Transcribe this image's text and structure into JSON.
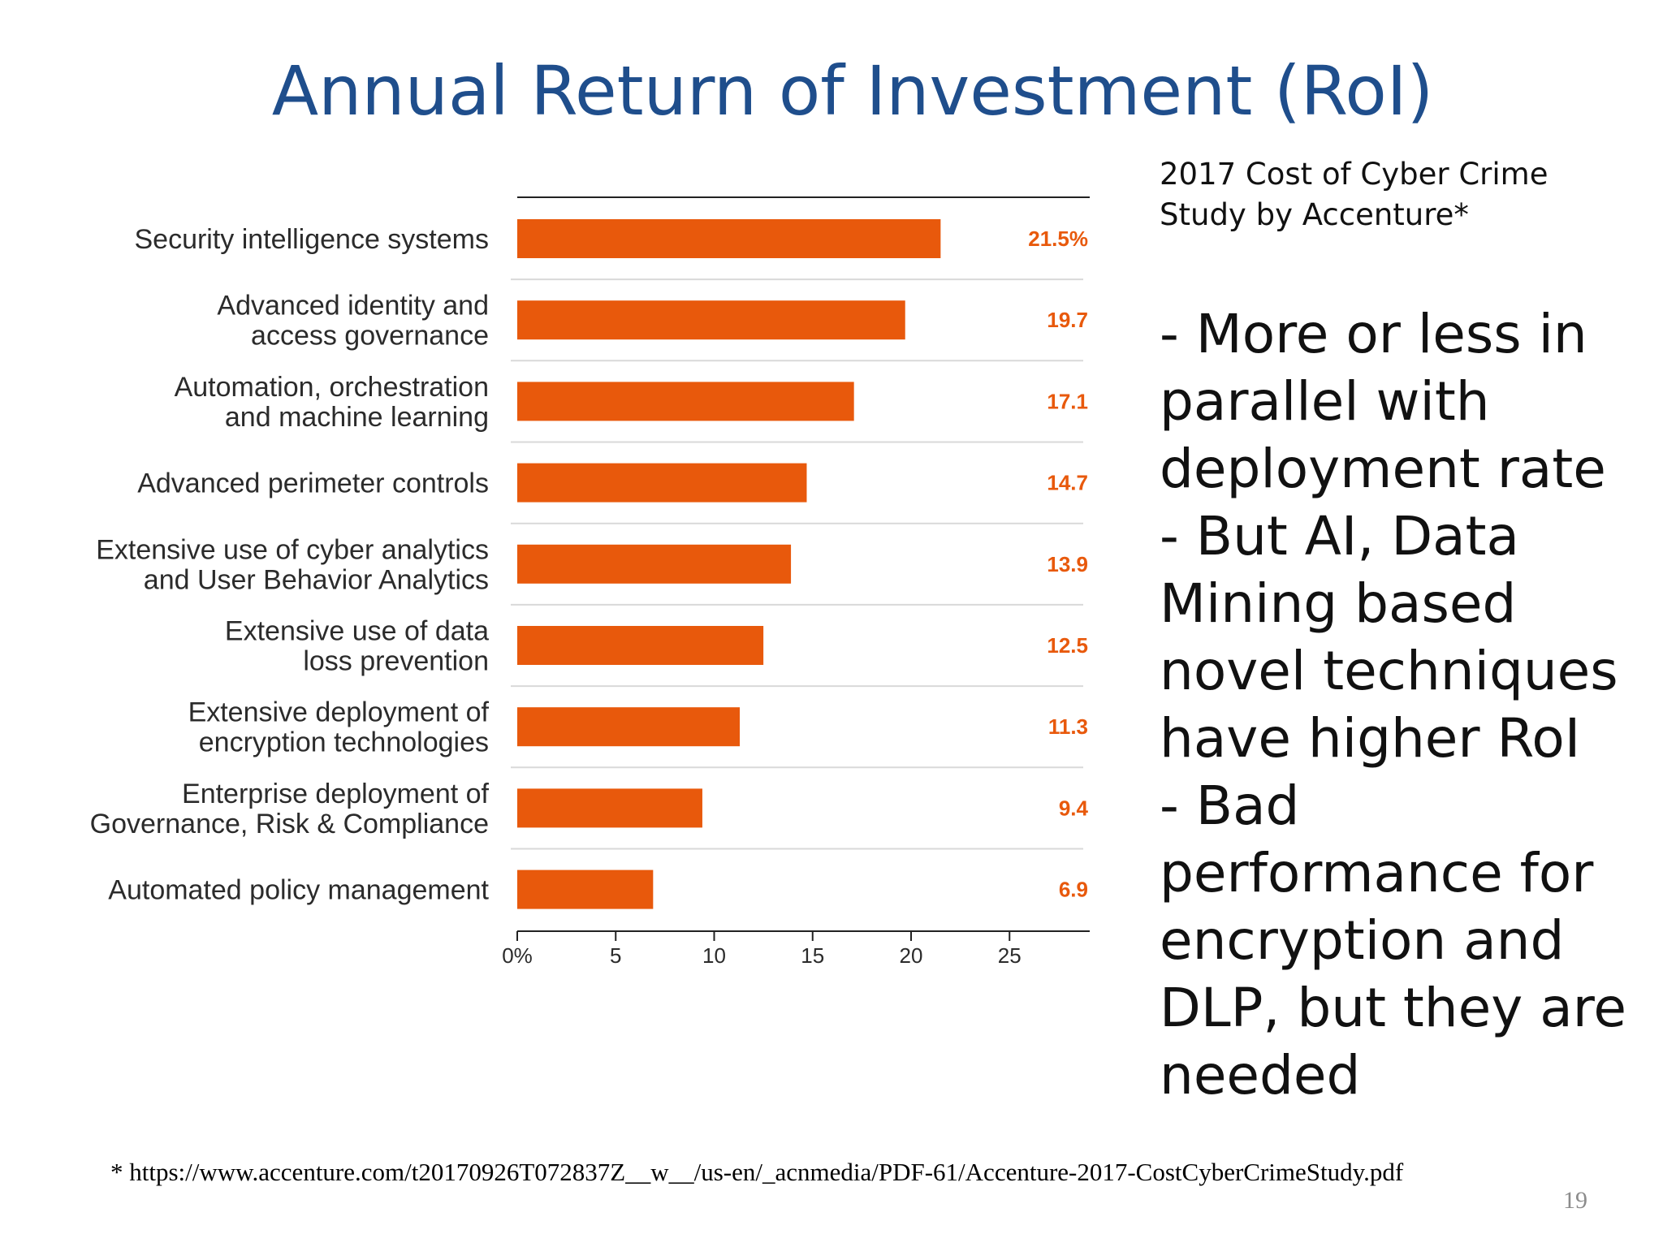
{
  "slide": {
    "title": "Annual Return of Investment (RoI)",
    "source_caption": "2017 Cost of Cyber Crime Study by Accenture*",
    "bullets": [
      "- More or less in parallel with deployment rate",
      "- But AI, Data Mining based novel techniques have higher RoI",
      "- Bad performance for encryption and DLP, but they are needed"
    ],
    "footnote": "* https://www.accenture.com/t20170926T072837Z__w__/us-en/_acnmedia/PDF-61/Accenture-2017-CostCyberCrimeStudy.pdf",
    "page_number": "19"
  },
  "chart_data": {
    "type": "bar",
    "orientation": "horizontal",
    "categories": [
      [
        "Security intelligence systems"
      ],
      [
        "Advanced identity and",
        "access governance"
      ],
      [
        "Automation, orchestration",
        "and machine learning"
      ],
      [
        "Advanced perimeter controls"
      ],
      [
        "Extensive use of cyber analytics",
        "and User Behavior Analytics"
      ],
      [
        "Extensive use of data",
        "loss prevention"
      ],
      [
        "Extensive deployment of",
        "encryption technologies"
      ],
      [
        "Enterprise deployment of",
        "Governance, Risk & Compliance"
      ],
      [
        "Automated policy management"
      ]
    ],
    "values": [
      21.5,
      19.7,
      17.1,
      14.7,
      13.9,
      12.5,
      11.3,
      9.4,
      6.9
    ],
    "value_labels": [
      "21.5%",
      "19.7",
      "17.1",
      "14.7",
      "13.9",
      "12.5",
      "11.3",
      "9.4",
      "6.9"
    ],
    "xticks": [
      0,
      5,
      10,
      15,
      20,
      25
    ],
    "xtick_labels": [
      "0%",
      "5",
      "10",
      "15",
      "20",
      "25"
    ],
    "xlim": [
      0,
      29
    ],
    "bar_color": "#e8590c",
    "label_color": "#e8590c",
    "grid": false
  }
}
